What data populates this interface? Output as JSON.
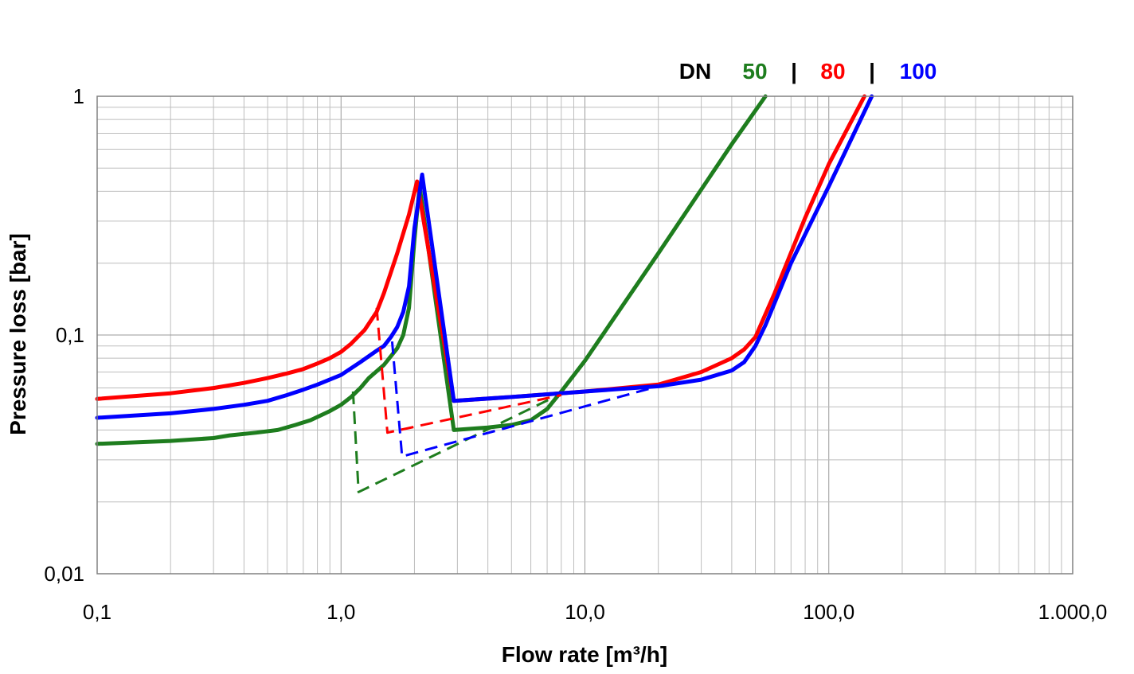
{
  "chart_data": {
    "type": "line",
    "xlabel": "Flow rate [m³/h]",
    "ylabel": "Pressure loss [bar]",
    "xscale": "log",
    "yscale": "log",
    "xlim": [
      0.1,
      1000
    ],
    "ylim": [
      0.01,
      1
    ],
    "grid": true,
    "x_ticks": [
      {
        "value": 0.1,
        "label": "0,1"
      },
      {
        "value": 1,
        "label": "1,0"
      },
      {
        "value": 10,
        "label": "10,0"
      },
      {
        "value": 100,
        "label": "100,0"
      },
      {
        "value": 1000,
        "label": "1.000,0"
      }
    ],
    "y_ticks": [
      {
        "value": 0.01,
        "label": "0,01"
      },
      {
        "value": 0.1,
        "label": "0,1"
      },
      {
        "value": 1,
        "label": "1"
      }
    ],
    "legend": {
      "position": "top-right",
      "prefix": "DN",
      "separator": "|",
      "entries": [
        {
          "label": "50",
          "color": "#1e7d1e"
        },
        {
          "label": "80",
          "color": "#ff0000"
        },
        {
          "label": "100",
          "color": "#0000ff"
        }
      ]
    },
    "series": [
      {
        "name": "50",
        "color": "#1e7d1e",
        "style": "solid",
        "points": [
          [
            0.1,
            0.035
          ],
          [
            0.2,
            0.036
          ],
          [
            0.3,
            0.037
          ],
          [
            0.35,
            0.038
          ],
          [
            0.45,
            0.039
          ],
          [
            0.55,
            0.04
          ],
          [
            0.65,
            0.042
          ],
          [
            0.75,
            0.044
          ],
          [
            0.9,
            0.048
          ],
          [
            1.0,
            0.051
          ],
          [
            1.1,
            0.055
          ],
          [
            1.2,
            0.06
          ],
          [
            1.3,
            0.066
          ],
          [
            1.5,
            0.075
          ],
          [
            1.7,
            0.088
          ],
          [
            1.8,
            0.1
          ],
          [
            1.9,
            0.13
          ],
          [
            2.0,
            0.25
          ],
          [
            2.1,
            0.42
          ],
          [
            2.9,
            0.04
          ],
          [
            4.0,
            0.041
          ],
          [
            5.0,
            0.042
          ],
          [
            6.0,
            0.044
          ],
          [
            7.0,
            0.049
          ],
          [
            8.0,
            0.058
          ],
          [
            10.0,
            0.078
          ],
          [
            20.0,
            0.22
          ],
          [
            40.0,
            0.63
          ],
          [
            55.0,
            1.0
          ]
        ]
      },
      {
        "name": "80",
        "color": "#ff0000",
        "style": "solid",
        "points": [
          [
            0.1,
            0.054
          ],
          [
            0.2,
            0.057
          ],
          [
            0.3,
            0.06
          ],
          [
            0.4,
            0.063
          ],
          [
            0.5,
            0.066
          ],
          [
            0.6,
            0.069
          ],
          [
            0.7,
            0.072
          ],
          [
            0.8,
            0.076
          ],
          [
            0.9,
            0.08
          ],
          [
            1.0,
            0.085
          ],
          [
            1.1,
            0.092
          ],
          [
            1.25,
            0.105
          ],
          [
            1.4,
            0.125
          ],
          [
            1.5,
            0.15
          ],
          [
            1.7,
            0.22
          ],
          [
            1.9,
            0.32
          ],
          [
            2.05,
            0.44
          ],
          [
            2.9,
            0.053
          ],
          [
            5.0,
            0.055
          ],
          [
            10.0,
            0.058
          ],
          [
            20.0,
            0.062
          ],
          [
            30.0,
            0.07
          ],
          [
            40.0,
            0.08
          ],
          [
            45.0,
            0.087
          ],
          [
            50.0,
            0.098
          ],
          [
            60.0,
            0.15
          ],
          [
            80.0,
            0.31
          ],
          [
            100.0,
            0.52
          ],
          [
            140.0,
            1.0
          ]
        ]
      },
      {
        "name": "100",
        "color": "#0000ff",
        "style": "solid",
        "points": [
          [
            0.1,
            0.045
          ],
          [
            0.2,
            0.047
          ],
          [
            0.3,
            0.049
          ],
          [
            0.4,
            0.051
          ],
          [
            0.5,
            0.053
          ],
          [
            0.6,
            0.056
          ],
          [
            0.7,
            0.059
          ],
          [
            0.8,
            0.062
          ],
          [
            1.0,
            0.068
          ],
          [
            1.2,
            0.077
          ],
          [
            1.4,
            0.086
          ],
          [
            1.5,
            0.09
          ],
          [
            1.6,
            0.098
          ],
          [
            1.7,
            0.108
          ],
          [
            1.8,
            0.125
          ],
          [
            1.9,
            0.16
          ],
          [
            2.0,
            0.28
          ],
          [
            2.15,
            0.47
          ],
          [
            2.9,
            0.053
          ],
          [
            5.0,
            0.055
          ],
          [
            10.0,
            0.058
          ],
          [
            20.0,
            0.061
          ],
          [
            30.0,
            0.065
          ],
          [
            40.0,
            0.071
          ],
          [
            45.0,
            0.077
          ],
          [
            50.0,
            0.09
          ],
          [
            55.0,
            0.11
          ],
          [
            70.0,
            0.2
          ],
          [
            100.0,
            0.42
          ],
          [
            150.0,
            1.0
          ]
        ]
      },
      {
        "name": "50",
        "color": "#1e7d1e",
        "style": "dashed",
        "points": [
          [
            1.12,
            0.058
          ],
          [
            1.18,
            0.022
          ],
          [
            7.5,
            0.055
          ]
        ]
      },
      {
        "name": "80",
        "color": "#ff0000",
        "style": "dashed",
        "points": [
          [
            1.4,
            0.13
          ],
          [
            1.55,
            0.039
          ],
          [
            8.0,
            0.056
          ]
        ]
      },
      {
        "name": "100",
        "color": "#0000ff",
        "style": "dashed",
        "points": [
          [
            1.62,
            0.094
          ],
          [
            1.78,
            0.031
          ],
          [
            20.0,
            0.061
          ]
        ]
      }
    ]
  }
}
